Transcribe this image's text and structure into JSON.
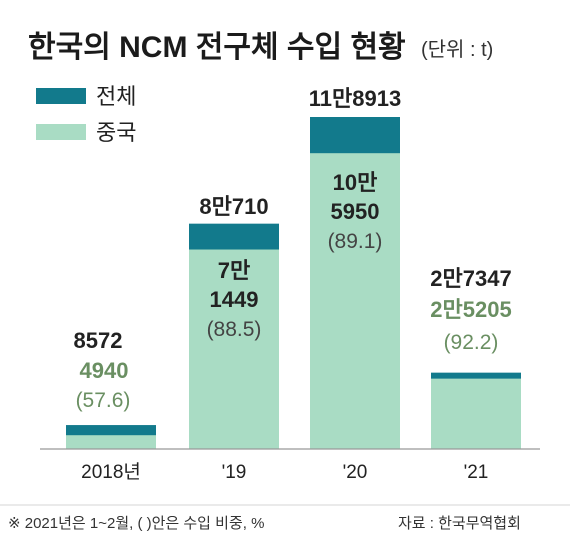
{
  "chart_data": {
    "type": "bar",
    "title": "한국의 NCM 전구체 수입 현황",
    "unit_note": "(단위 : t)",
    "legend": [
      "전체",
      "중국"
    ],
    "categories": [
      "2018년",
      "'19",
      "'20",
      "'21"
    ],
    "series": [
      {
        "name": "전체",
        "values": [
          8572,
          80710,
          118913,
          27347
        ]
      },
      {
        "name": "중국",
        "values": [
          4940,
          71449,
          105950,
          25205
        ]
      }
    ],
    "total_labels": [
      "8572",
      "8만710",
      "11만8913",
      "2만7347"
    ],
    "china_labels": [
      [
        "4940"
      ],
      [
        "7만",
        "1449"
      ],
      [
        "10만",
        "5950"
      ],
      [
        "2만5205"
      ]
    ],
    "share_labels": [
      "(57.6)",
      "(88.5)",
      "(89.1)",
      "(92.2)"
    ],
    "ylim": [
      0,
      130000
    ],
    "colors": {
      "total": "#127a8c",
      "china": "#a9dcc4",
      "green_text": "#6a8f62",
      "dark_text": "#222222",
      "paren_text": "#444444",
      "axis": "#999999"
    }
  },
  "footer": {
    "note": "※ 2021년은 1~2월, ( )안은 수입 비중, %",
    "source": "자료 : 한국무역협회"
  }
}
